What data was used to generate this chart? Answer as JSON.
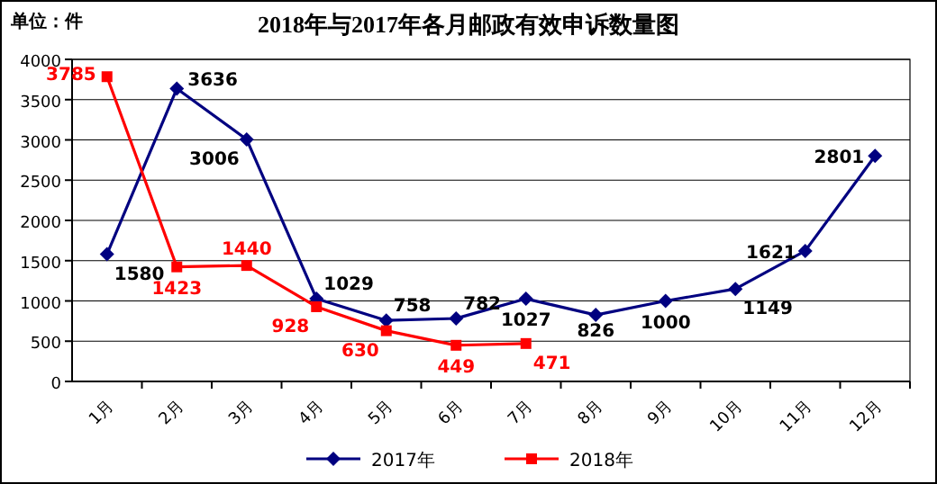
{
  "chart_data": {
    "type": "line",
    "title": "2018年与2017年各月邮政有效申诉数量图",
    "annotations": [
      "单位：件"
    ],
    "categories": [
      "1月",
      "2月",
      "3月",
      "4月",
      "5月",
      "6月",
      "7月",
      "8月",
      "9月",
      "10月",
      "11月",
      "12月"
    ],
    "series": [
      {
        "name": "2017年",
        "color": "#000080",
        "marker": "diamond",
        "values": [
          1580,
          3636,
          3006,
          1029,
          758,
          782,
          1027,
          826,
          1000,
          1149,
          1621,
          2801
        ]
      },
      {
        "name": "2018年",
        "color": "#ff0000",
        "marker": "square",
        "values": [
          3785,
          1423,
          1440,
          928,
          630,
          449,
          471,
          null,
          null,
          null,
          null,
          null
        ]
      }
    ],
    "ylim": [
      0,
      4000
    ],
    "yticks": [
      0,
      500,
      1000,
      1500,
      2000,
      2500,
      3000,
      3500,
      4000
    ],
    "grid": "y",
    "legend": "bottom",
    "data_labels": true
  }
}
